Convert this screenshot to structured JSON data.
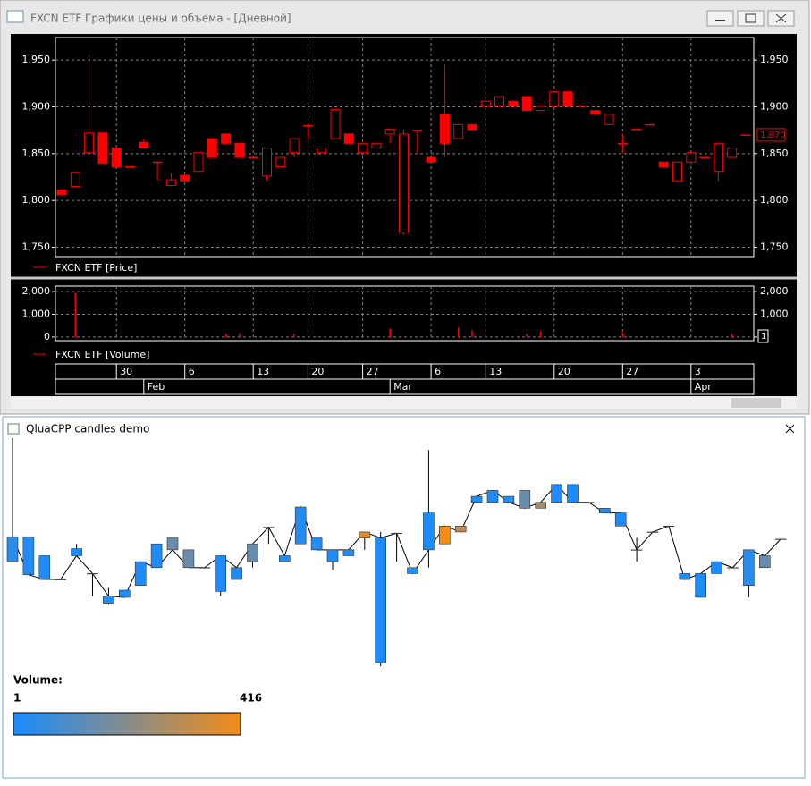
{
  "windows": {
    "top": {
      "title": "FXCN ETF Графики цены и объема - [Дневной]"
    },
    "bottom": {
      "title": "QluaCPP candles demo"
    }
  },
  "chart_data": [
    {
      "type": "candlestick",
      "legend": "FXCN ETF [Price]",
      "color": "#ff0000",
      "open": [
        1811,
        1815,
        1851,
        1872,
        1856,
        1836,
        1862,
        1841,
        1816,
        1827,
        1831,
        1866,
        1871,
        1861,
        1846,
        1826,
        1836,
        1851,
        1880,
        1851,
        1866,
        1871,
        1851,
        1856,
        1871,
        1766,
        1875,
        1846,
        1892,
        1866,
        1881,
        1901,
        1901,
        1906,
        1911,
        1896,
        1901,
        1916,
        1901,
        1896,
        1881,
        1861,
        1876,
        1881,
        1841,
        1821,
        1841,
        1846,
        1831,
        1846,
        1870
      ],
      "high": [
        1811,
        1830,
        1955,
        1872,
        1856,
        1836,
        1866,
        1841,
        1829,
        1827,
        1851,
        1866,
        1871,
        1861,
        1846,
        1856,
        1846,
        1866,
        1880,
        1856,
        1897,
        1871,
        1861,
        1861,
        1876,
        1876,
        1875,
        1846,
        1945,
        1881,
        1881,
        1906,
        1911,
        1906,
        1911,
        1901,
        1916,
        1916,
        1901,
        1896,
        1892,
        1871,
        1876,
        1881,
        1841,
        1841,
        1851,
        1846,
        1861,
        1856,
        1870
      ],
      "low": [
        1806,
        1815,
        1851,
        1840,
        1836,
        1836,
        1856,
        1822,
        1815,
        1821,
        1831,
        1846,
        1861,
        1846,
        1846,
        1822,
        1836,
        1846,
        1866,
        1851,
        1866,
        1861,
        1844,
        1856,
        1861,
        1763,
        1851,
        1841,
        1846,
        1866,
        1876,
        1901,
        1901,
        1901,
        1896,
        1896,
        1901,
        1901,
        1901,
        1892,
        1881,
        1851,
        1876,
        1881,
        1836,
        1821,
        1841,
        1846,
        1821,
        1846,
        1870
      ],
      "close": [
        1806,
        1830,
        1872,
        1840,
        1836,
        1836,
        1856,
        1841,
        1822,
        1821,
        1851,
        1846,
        1861,
        1846,
        1846,
        1856,
        1846,
        1866,
        1880,
        1856,
        1897,
        1861,
        1861,
        1861,
        1876,
        1871,
        1875,
        1841,
        1861,
        1881,
        1876,
        1906,
        1911,
        1901,
        1896,
        1901,
        1916,
        1901,
        1901,
        1892,
        1892,
        1861,
        1876,
        1881,
        1836,
        1841,
        1851,
        1846,
        1861,
        1856,
        1870
      ],
      "last_price": {
        "value": 1870,
        "label": "1,870"
      },
      "ylim": [
        1740,
        1974
      ],
      "yticks": [
        {
          "value": 1750,
          "label": "1,750"
        },
        {
          "value": 1800,
          "label": "1,800"
        },
        {
          "value": 1850,
          "label": "1,850"
        },
        {
          "value": 1900,
          "label": "1,900"
        },
        {
          "value": 1950,
          "label": "1,950"
        }
      ],
      "grid": true,
      "day_labels": [
        null,
        null,
        null,
        null,
        "30",
        null,
        null,
        null,
        null,
        "6",
        null,
        null,
        null,
        null,
        "13",
        null,
        null,
        null,
        "20",
        null,
        null,
        null,
        "27",
        null,
        null,
        null,
        null,
        "6",
        null,
        null,
        null,
        "13",
        null,
        null,
        null,
        null,
        "20",
        null,
        null,
        null,
        null,
        "27",
        null,
        null,
        null,
        null,
        "3",
        null,
        null,
        null,
        null
      ],
      "month_labels": [
        null,
        null,
        null,
        null,
        null,
        null,
        "Feb",
        null,
        null,
        null,
        null,
        null,
        null,
        null,
        null,
        null,
        null,
        null,
        null,
        null,
        null,
        null,
        null,
        null,
        "Mar",
        null,
        null,
        null,
        null,
        null,
        null,
        null,
        null,
        null,
        null,
        null,
        null,
        null,
        null,
        null,
        null,
        null,
        null,
        null,
        null,
        null,
        "Apr",
        null,
        null,
        null,
        null
      ]
    },
    {
      "type": "bar",
      "legend": "FXCN ETF [Volume]",
      "color": "#ff0000",
      "values": [
        20,
        1950,
        30,
        15,
        10,
        5,
        10,
        8,
        12,
        10,
        15,
        10,
        150,
        150,
        5,
        8,
        5,
        150,
        5,
        10,
        15,
        10,
        5,
        5,
        380,
        10,
        5,
        20,
        5,
        416,
        300,
        10,
        10,
        10,
        150,
        260,
        10,
        5,
        5,
        10,
        5,
        200,
        5,
        5,
        10,
        10,
        5,
        5,
        30,
        150,
        1
      ],
      "ylim": [
        -160,
        2240
      ],
      "yticks": [
        0,
        {
          "value": 1000,
          "label": "1,000"
        },
        {
          "value": 2000,
          "label": "2,000"
        }
      ],
      "grid": true
    },
    {
      "type": "volume-candlestick",
      "legend_title": "Volume:",
      "color_scale": {
        "min": 1,
        "max": 416,
        "colors": [
          "#1a8cff",
          "#f28c1a"
        ]
      }
    }
  ]
}
